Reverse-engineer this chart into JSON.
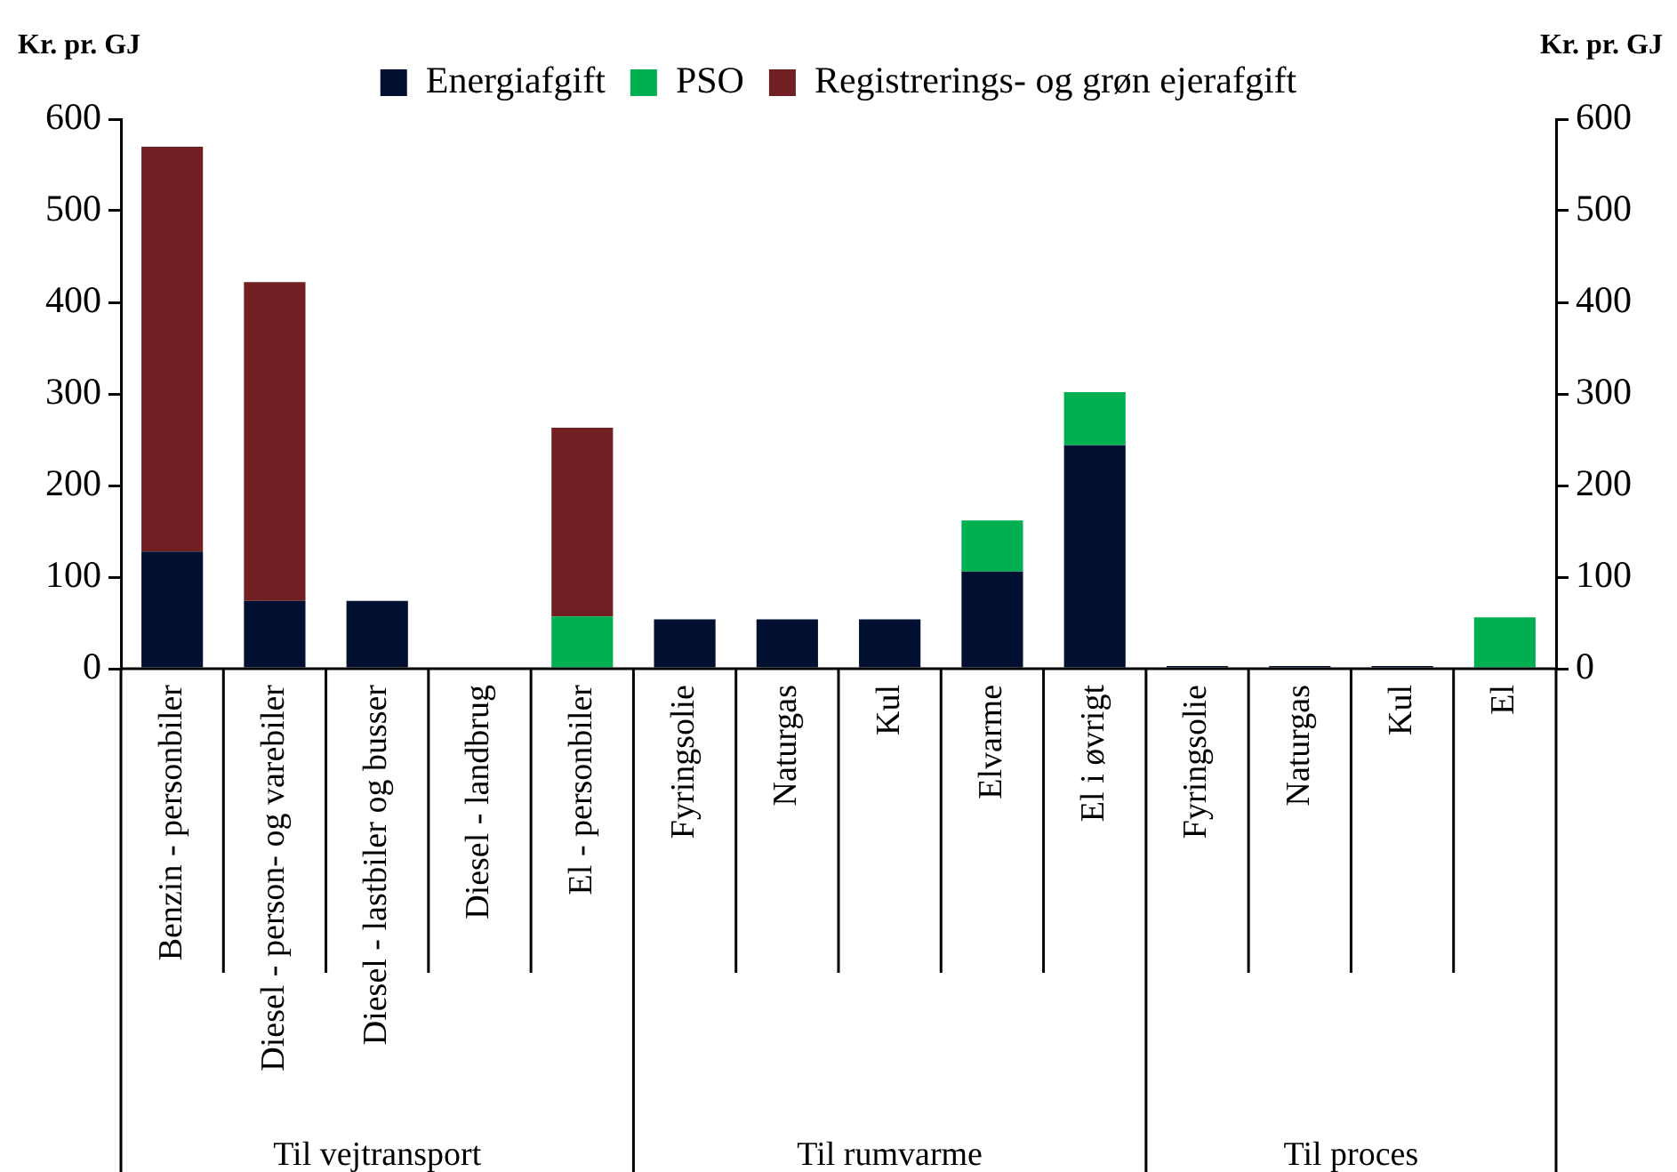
{
  "chart_data": {
    "type": "bar",
    "stacked": true,
    "ylabel": "Kr. pr. GJ",
    "y2label": "Kr. pr. GJ",
    "categories": [
      "Benzin - personbiler",
      "Diesel - person- og varebiler",
      "Diesel - lastbiler og busser",
      "Diesel - landbrug",
      "El - personbiler",
      "Fyringsolie",
      "Naturgas",
      "Kul",
      "Elvarme",
      "El i øvrigt",
      "Fyringsolie",
      "Naturgas",
      "Kul",
      "El"
    ],
    "series": [
      {
        "name": "Energiafgift",
        "color": "#011030",
        "values": [
          128,
          74,
          74,
          0,
          0,
          54,
          54,
          54,
          106,
          244,
          3,
          3,
          3,
          0
        ]
      },
      {
        "name": "PSO",
        "color": "#00b050",
        "values": [
          0,
          0,
          0,
          0,
          57,
          0,
          0,
          0,
          56,
          58,
          0,
          0,
          0,
          56
        ]
      },
      {
        "name": "Registrerings- og grøn ejerafgift",
        "color": "#721f24",
        "values": [
          442,
          348,
          0,
          0,
          206,
          0,
          0,
          0,
          0,
          0,
          0,
          0,
          0,
          0
        ]
      }
    ],
    "ylim": [
      0,
      600
    ],
    "yticks": [
      0,
      100,
      200,
      300,
      400,
      500,
      600
    ],
    "y2lim": [
      0,
      600
    ],
    "y2ticks": [
      0,
      100,
      200,
      300,
      400,
      500,
      600
    ],
    "annotations": [
      "Til vejtransport",
      "Til rumvarme",
      "Til proces"
    ],
    "grid": false,
    "legend": "top"
  }
}
